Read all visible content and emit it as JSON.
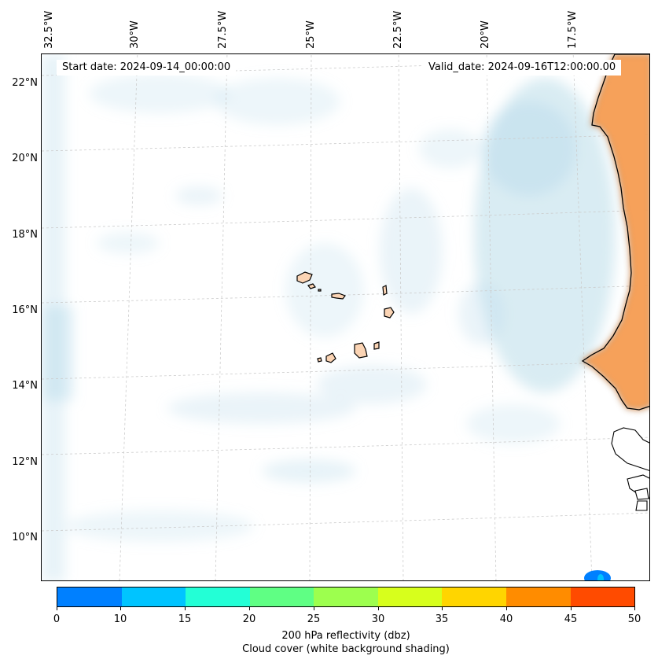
{
  "map": {
    "start_date": "Start date: 2024-09-14_00:00:00",
    "valid_date": "Valid_date: 2024-09-16T12:00:00.00",
    "longitude_labels": [
      "32.5°W",
      "30°W",
      "27.5°W",
      "25°W",
      "22.5°W",
      "20°W",
      "17.5°W"
    ],
    "latitude_labels": [
      "22°N",
      "20°N",
      "18°N",
      "16°N",
      "14°N",
      "12°N",
      "10°N"
    ],
    "land_color": "#f6a15a",
    "island_color": "#fbd4b4",
    "cloud_color": "#b9dcea"
  },
  "colorbar": {
    "ticks": [
      "0",
      "10",
      "15",
      "20",
      "25",
      "30",
      "35",
      "40",
      "45",
      "50"
    ],
    "colors": [
      "#0080ff",
      "#00c4ff",
      "#23ffd6",
      "#5fff84",
      "#9dff4e",
      "#d7ff1c",
      "#ffd500",
      "#ff8c00",
      "#ff4b00"
    ],
    "label_line1": "200 hPa reflectivity (dbz)",
    "label_line2": "Cloud cover (white background shading)"
  }
}
